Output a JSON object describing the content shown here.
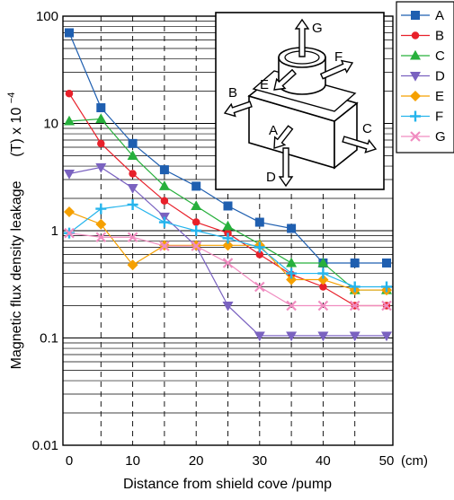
{
  "chart_data": {
    "type": "line",
    "xlabel": "Distance from shield cove /pump",
    "xunit": "(cm)",
    "ylabel_main": "Magnetic flux density leakage",
    "ylabel_unit": "(T) x 10",
    "ylabel_exp": "−4",
    "xlim": [
      -1,
      50
    ],
    "ylim": [
      0.01,
      100
    ],
    "yscale": "log",
    "xticks": [
      0,
      10,
      20,
      30,
      40,
      50
    ],
    "xtick_labels": [
      "0",
      "10",
      "20",
      "30",
      "40",
      "50"
    ],
    "yticks": [
      0.01,
      0.1,
      1,
      10,
      100
    ],
    "ytick_labels": [
      "0.01",
      "0.1",
      "1",
      "10",
      "100"
    ],
    "grid": true,
    "legend_position": "top-right",
    "x": [
      0,
      5,
      10,
      15,
      20,
      25,
      30,
      35,
      40,
      45,
      50
    ],
    "series": [
      {
        "name": "A",
        "color": "#1f5fb0",
        "marker": "square",
        "values": [
          70,
          14,
          6.5,
          3.7,
          2.6,
          1.7,
          1.2,
          1.05,
          0.5,
          0.5,
          0.5
        ]
      },
      {
        "name": "B",
        "color": "#e8202a",
        "marker": "circle",
        "values": [
          19,
          6.5,
          3.4,
          1.9,
          1.2,
          0.95,
          0.6,
          0.39,
          0.3,
          0.2,
          0.2
        ]
      },
      {
        "name": "C",
        "color": "#27b03c",
        "marker": "triangle-up",
        "values": [
          10.5,
          11,
          5,
          2.6,
          1.7,
          1.1,
          0.75,
          0.5,
          0.5,
          0.28,
          0.28
        ]
      },
      {
        "name": "D",
        "color": "#7a62c0",
        "marker": "triangle-down",
        "values": [
          3.4,
          3.9,
          2.5,
          1.35,
          0.72,
          0.2,
          0.105,
          0.105,
          0.105,
          0.105,
          0.105
        ]
      },
      {
        "name": "E",
        "color": "#f5a000",
        "marker": "diamond",
        "values": [
          1.5,
          1.15,
          0.48,
          0.73,
          0.73,
          0.73,
          0.73,
          0.35,
          0.35,
          0.28,
          0.28
        ]
      },
      {
        "name": "F",
        "color": "#25b4ec",
        "marker": "plus",
        "values": [
          0.95,
          1.6,
          1.75,
          1.2,
          1.0,
          0.85,
          0.7,
          0.4,
          0.4,
          0.3,
          0.3
        ]
      },
      {
        "name": "G",
        "color": "#f08cc0",
        "marker": "x",
        "values": [
          0.95,
          0.87,
          0.87,
          0.72,
          0.72,
          0.5,
          0.3,
          0.2,
          0.2,
          0.2,
          0.2
        ]
      }
    ],
    "inset": {
      "direction_labels": [
        "G",
        "F",
        "E",
        "B",
        "A",
        "C",
        "D"
      ]
    }
  }
}
